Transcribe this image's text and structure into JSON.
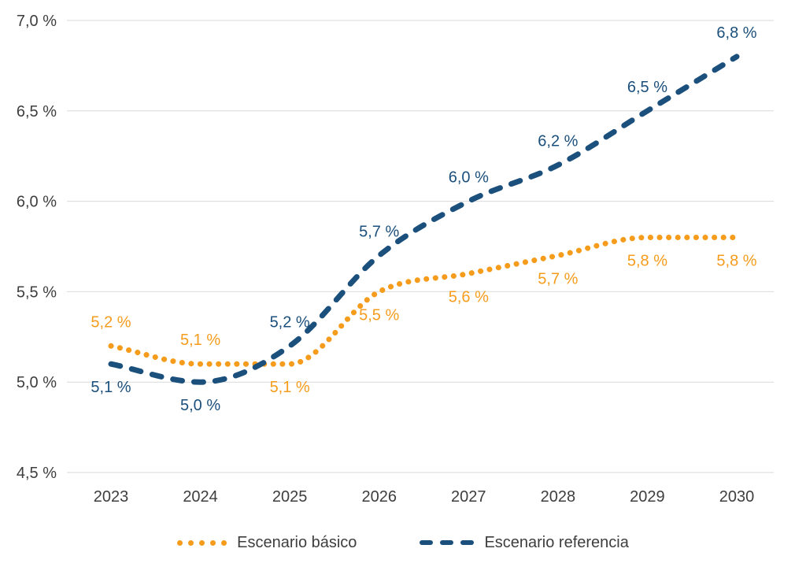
{
  "chart_data": {
    "type": "line",
    "title": "",
    "xlabel": "",
    "ylabel": "",
    "x_categories": [
      "2023",
      "2024",
      "2025",
      "2026",
      "2027",
      "2028",
      "2029",
      "2030"
    ],
    "ylim": [
      4.5,
      7.0
    ],
    "y_ticks": [
      {
        "value": 4.5,
        "label": "4,5 %"
      },
      {
        "value": 5.0,
        "label": "5,0 %"
      },
      {
        "value": 5.5,
        "label": "5,5 %"
      },
      {
        "value": 6.0,
        "label": "6,0 %"
      },
      {
        "value": 6.5,
        "label": "6,5 %"
      },
      {
        "value": 7.0,
        "label": "7,0 %"
      }
    ],
    "grid": true,
    "grid_color": "#D9D9D9",
    "axis_text_color": "#3E3E3E",
    "legend_position": "bottom",
    "series": [
      {
        "name": "Escenario básico",
        "color": "#F59C1C",
        "line_style": "dotted",
        "values": [
          5.2,
          5.1,
          5.1,
          5.5,
          5.6,
          5.7,
          5.8,
          5.8
        ],
        "point_labels": [
          "5,2 %",
          "5,1 %",
          "5,1 %",
          "5,5 %",
          "5,6 %",
          "5,7 %",
          "5,8 %",
          "5,8 %"
        ],
        "label_positions": [
          "above",
          "above",
          "below",
          "below",
          "below",
          "below",
          "below",
          "below"
        ]
      },
      {
        "name": "Escenario referencia",
        "color": "#1B4F7C",
        "line_style": "dashed",
        "values": [
          5.1,
          5.0,
          5.2,
          5.7,
          6.0,
          6.2,
          6.5,
          6.8
        ],
        "point_labels": [
          "5,1 %",
          "5,0 %",
          "5,2 %",
          "5,7 %",
          "6,0 %",
          "6,2 %",
          "6,5 %",
          "6,8 %"
        ],
        "label_positions": [
          "below",
          "below",
          "above",
          "above",
          "above",
          "above",
          "above",
          "above"
        ]
      }
    ]
  }
}
